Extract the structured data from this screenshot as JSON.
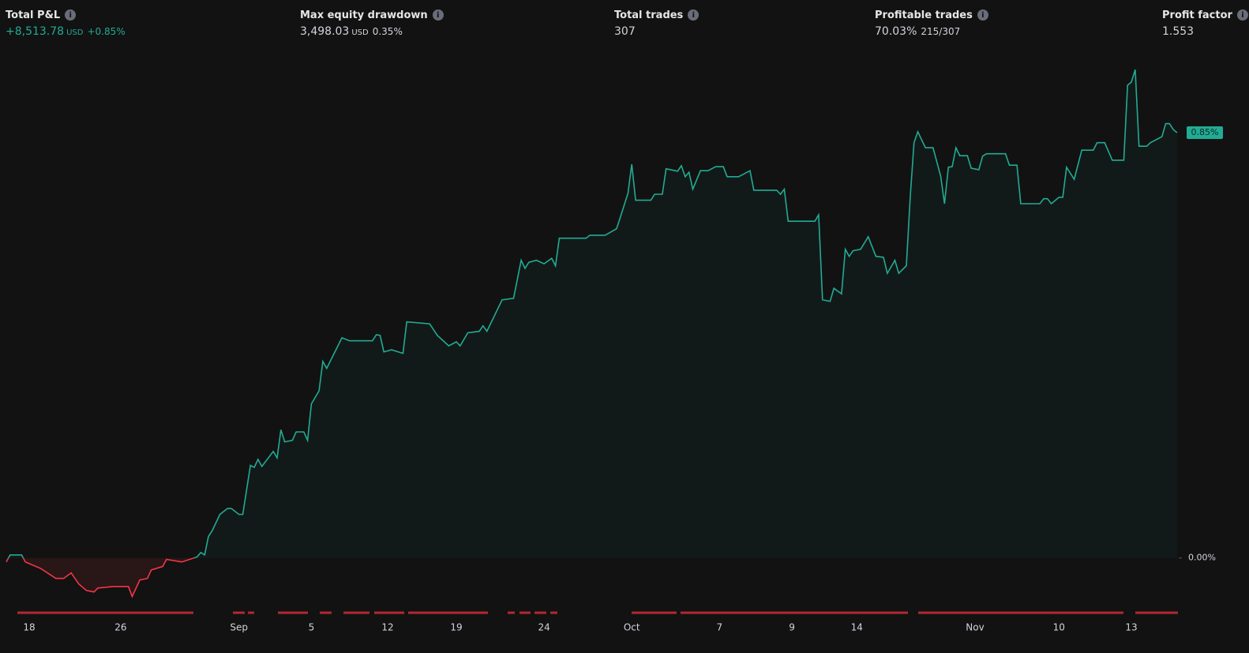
{
  "metrics": [
    {
      "label": "Total P&L",
      "value": "+8,513.78",
      "unit": "USD",
      "extra": "+0.85%"
    },
    {
      "label": "Max equity drawdown",
      "value": "3,498.03",
      "unit": "USD",
      "extra": "0.35%"
    },
    {
      "label": "Total trades",
      "value": "307"
    },
    {
      "label": "Profitable trades",
      "value": "70.03%",
      "extra": "215/307"
    },
    {
      "label": "Profit factor",
      "value": "1.553"
    }
  ],
  "chart_data": {
    "type": "line",
    "x": [
      0,
      1,
      4,
      5,
      9,
      13,
      15,
      17,
      19,
      21,
      23,
      24,
      28,
      32,
      33,
      35,
      37,
      38,
      41,
      42,
      46,
      50,
      51,
      52,
      53,
      54,
      56,
      58,
      59,
      61,
      62,
      64,
      65,
      66,
      67,
      70,
      71,
      72,
      73,
      75,
      76,
      78,
      79,
      80,
      82,
      83,
      84,
      88,
      90,
      96,
      97,
      98,
      99,
      101,
      104,
      105,
      111,
      113,
      116,
      118,
      119,
      121,
      124,
      125,
      126,
      129,
      130,
      133,
      135,
      136,
      137,
      139,
      141,
      143,
      144,
      145,
      152,
      153,
      157,
      160,
      161,
      163,
      164,
      165,
      169,
      170,
      172,
      173,
      176,
      177,
      178,
      179,
      180,
      182,
      184,
      186,
      188,
      189,
      192,
      195,
      196,
      202,
      203,
      204,
      205,
      212,
      213,
      214,
      216,
      217,
      219,
      220,
      221,
      222,
      224,
      226,
      228,
      230,
      231,
      233,
      234,
      236,
      237,
      238,
      239,
      241,
      243,
      245,
      246,
      247,
      248,
      249,
      250,
      252,
      253,
      255,
      256,
      257,
      262,
      263,
      265,
      266,
      271,
      272,
      273,
      274,
      276,
      277,
      278,
      280,
      282,
      285,
      286,
      288,
      290,
      293,
      294,
      295,
      296,
      297,
      299,
      300,
      303,
      304,
      305,
      306,
      307
    ],
    "values": [
      -0.008,
      0.006,
      0.006,
      -0.008,
      -0.021,
      -0.041,
      -0.041,
      -0.03,
      -0.052,
      -0.065,
      -0.068,
      -0.06,
      -0.057,
      -0.057,
      -0.077,
      -0.044,
      -0.041,
      -0.024,
      -0.017,
      -0.003,
      -0.008,
      0.002,
      0.011,
      0.006,
      0.043,
      0.055,
      0.087,
      0.099,
      0.099,
      0.087,
      0.087,
      0.185,
      0.181,
      0.197,
      0.183,
      0.213,
      0.2,
      0.256,
      0.232,
      0.235,
      0.252,
      0.252,
      0.235,
      0.308,
      0.334,
      0.393,
      0.379,
      0.44,
      0.434,
      0.434,
      0.446,
      0.445,
      0.412,
      0.416,
      0.409,
      0.472,
      0.468,
      0.445,
      0.424,
      0.432,
      0.424,
      0.45,
      0.453,
      0.464,
      0.453,
      0.5,
      0.516,
      0.519,
      0.595,
      0.579,
      0.591,
      0.595,
      0.588,
      0.599,
      0.584,
      0.639,
      0.639,
      0.645,
      0.645,
      0.658,
      0.681,
      0.729,
      0.787,
      0.715,
      0.715,
      0.727,
      0.727,
      0.778,
      0.773,
      0.784,
      0.762,
      0.771,
      0.737,
      0.774,
      0.774,
      0.782,
      0.782,
      0.762,
      0.762,
      0.774,
      0.735,
      0.735,
      0.727,
      0.737,
      0.673,
      0.673,
      0.686,
      0.516,
      0.513,
      0.539,
      0.528,
      0.617,
      0.603,
      0.614,
      0.617,
      0.642,
      0.603,
      0.601,
      0.569,
      0.595,
      0.569,
      0.584,
      0.721,
      0.83,
      0.852,
      0.82,
      0.82,
      0.763,
      0.708,
      0.781,
      0.782,
      0.82,
      0.804,
      0.804,
      0.779,
      0.776,
      0.803,
      0.808,
      0.808,
      0.785,
      0.785,
      0.708,
      0.708,
      0.718,
      0.718,
      0.708,
      0.721,
      0.721,
      0.781,
      0.757,
      0.815,
      0.815,
      0.83,
      0.83,
      0.795,
      0.795,
      0.945,
      0.951,
      0.976,
      0.823,
      0.823,
      0.83,
      0.842,
      0.868,
      0.868,
      0.856,
      0.85
    ],
    "colors": {
      "up": "#22ab94",
      "down": "#f23645"
    },
    "xlim": [
      0,
      307
    ],
    "ylim": [
      -0.1,
      1.0
    ],
    "xticks": [
      {
        "value": 6,
        "label": "18"
      },
      {
        "value": 30,
        "label": "26"
      },
      {
        "value": 61,
        "label": "Sep"
      },
      {
        "value": 80,
        "label": "5"
      },
      {
        "value": 100,
        "label": "12"
      },
      {
        "value": 118,
        "label": "19"
      },
      {
        "value": 141,
        "label": "24"
      },
      {
        "value": 164,
        "label": "Oct"
      },
      {
        "value": 187,
        "label": "7"
      },
      {
        "value": 206,
        "label": "9"
      },
      {
        "value": 223,
        "label": "14"
      },
      {
        "value": 254,
        "label": "Nov"
      },
      {
        "value": 276,
        "label": "10"
      },
      {
        "value": 295,
        "label": "13"
      }
    ],
    "yticks": [
      {
        "value": 0,
        "label": "0.00%"
      }
    ],
    "last_value": {
      "value": 0.85,
      "label": "0.85%"
    }
  }
}
